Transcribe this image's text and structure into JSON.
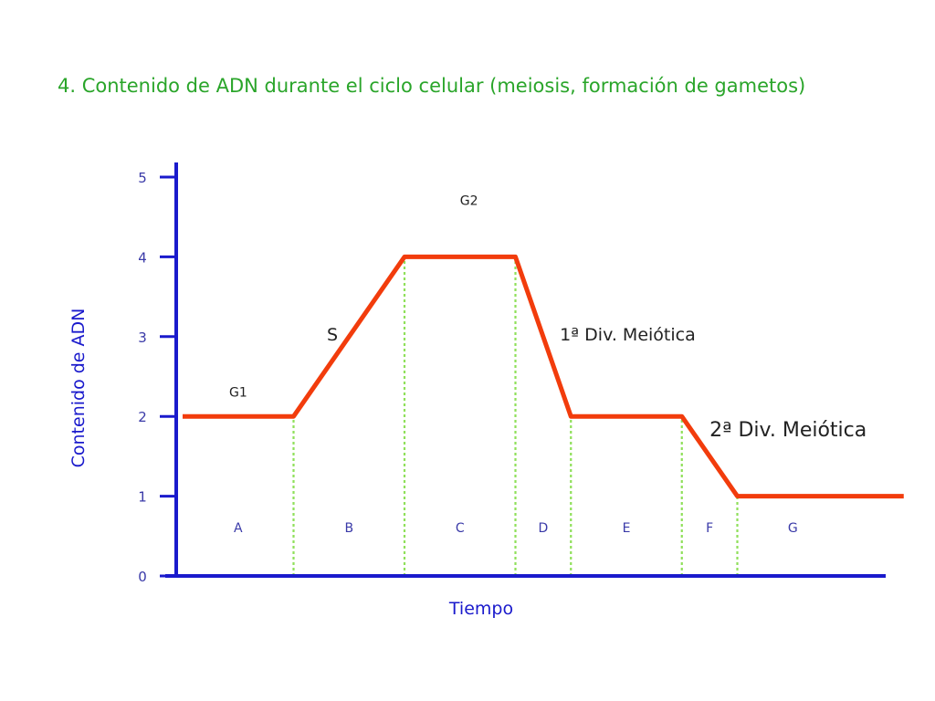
{
  "title": "4. Contenido de ADN durante el ciclo celular (meiosis, formación de gametos)",
  "colors": {
    "title": "#2aa52a",
    "axis": "#1a1acc",
    "tick_label": "#3a3aa8",
    "series": "#f23c0c",
    "divider": "#8fe05a",
    "annotation": "#222222",
    "phase_label": "#3a3aa8"
  },
  "chart_data": {
    "type": "line",
    "xlabel": "Tiempo",
    "ylabel": "Contenido de ADN",
    "ylim": [
      0,
      5
    ],
    "y_ticks": [
      "0",
      "1",
      "2",
      "3",
      "4",
      "5"
    ],
    "grid": false,
    "series": [
      {
        "x": [
          0,
          1,
          2,
          3,
          3.5,
          4.5,
          5,
          5.5,
          6.5
        ],
        "values": [
          2,
          2,
          4,
          4,
          2,
          2,
          1,
          1,
          1
        ]
      }
    ],
    "phase_boundaries": [
      1,
      2,
      3,
      3.5,
      4.5,
      5
    ],
    "phases": [
      {
        "label": "A",
        "x": 0.5
      },
      {
        "label": "B",
        "x": 1.5
      },
      {
        "label": "C",
        "x": 2.5
      },
      {
        "label": "D",
        "x": 3.25
      },
      {
        "label": "E",
        "x": 4.0
      },
      {
        "label": "F",
        "x": 4.75
      },
      {
        "label": "G",
        "x": 5.5
      }
    ],
    "annotations": [
      {
        "text": "G1",
        "x": 0.42,
        "y": 2.25,
        "size": "small"
      },
      {
        "text": "S",
        "x": 1.3,
        "y": 2.95,
        "size": "medium"
      },
      {
        "text": "G2",
        "x": 2.5,
        "y": 4.65,
        "size": "small"
      },
      {
        "text": "1ª Div. Meiótica",
        "x": 3.4,
        "y": 2.95,
        "size": "medium"
      },
      {
        "text": "2ª Div. Meiótica",
        "x": 4.75,
        "y": 1.75,
        "size": "large"
      }
    ]
  }
}
